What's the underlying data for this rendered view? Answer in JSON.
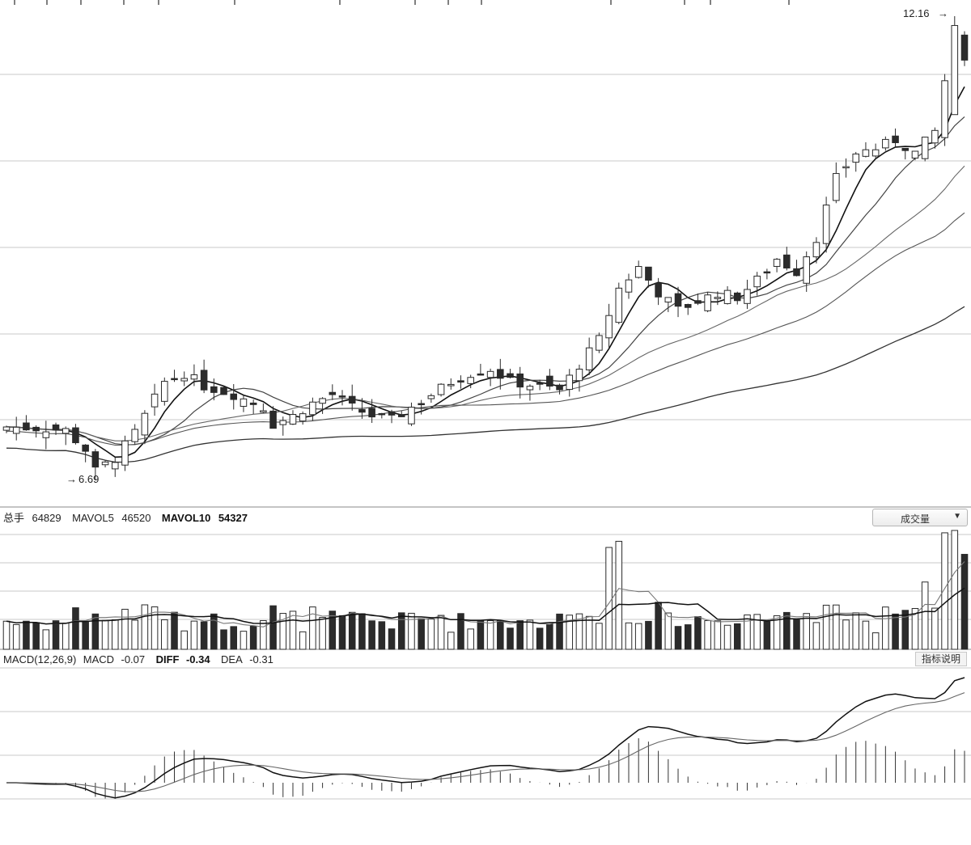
{
  "price_panel": {
    "high_label": "12.16",
    "low_label": "6.69"
  },
  "volume_panel": {
    "legend": {
      "vol_label": "总手",
      "vol_value": "64829",
      "mavol5_label": "MAVOL5",
      "mavol5_value": "46520",
      "mavol10_label": "MAVOL10",
      "mavol10_value": "54327"
    },
    "selector": "成交量",
    "selector_icon": "chevron-down-icon"
  },
  "macd_panel": {
    "legend": {
      "params": "MACD(12,26,9)",
      "macd_label": "MACD",
      "macd_value": "-0.07",
      "diff_label": "DIFF",
      "diff_value": "-0.34",
      "dea_label": "DEA",
      "dea_value": "-0.31"
    },
    "help_button": "指标说明"
  },
  "colors": {
    "background": "#ffffff",
    "grid": "#c9c9c9",
    "candle_bear": "#2b2b2b",
    "candle_bull_fill": "#ffffff",
    "line": "#333333"
  },
  "chart_data": [
    {
      "type": "candlestick",
      "title": "",
      "annotations": [
        {
          "label": "12.16",
          "at": "last high"
        },
        {
          "label": "6.69",
          "at": "period low"
        }
      ],
      "ylim": [
        6.3,
        12.4
      ],
      "price_range": {
        "low": 6.69,
        "high": 12.16
      },
      "moving_averages": [
        "MA5",
        "MA10",
        "MA20",
        "MA30",
        "MA60"
      ],
      "trend": "sideways then rising from about 7.2 to 12.16",
      "grid": true
    },
    {
      "type": "bar",
      "title": "",
      "series": [
        {
          "name": "总手",
          "last_value": 64829
        },
        {
          "name": "MAVOL5",
          "last_value": 46520
        },
        {
          "name": "MAVOL10",
          "last_value": 54327
        }
      ],
      "grid": true
    },
    {
      "type": "line",
      "title": "",
      "series": [
        {
          "name": "DIFF",
          "last_value": -0.34
        },
        {
          "name": "DEA",
          "last_value": -0.31
        },
        {
          "name": "MACD",
          "last_value": -0.07
        }
      ],
      "grid": true
    }
  ]
}
